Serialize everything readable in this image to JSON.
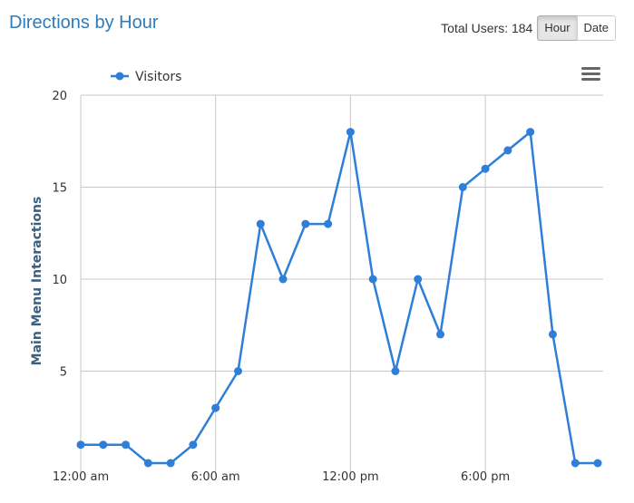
{
  "header": {
    "title": "Directions by Hour",
    "total_users_label": "Total Users: 184",
    "toggle": {
      "hour_label": "Hour",
      "date_label": "Date",
      "active": "hour"
    }
  },
  "icons": {
    "menu": "hamburger-menu-icon"
  },
  "colors": {
    "series": "#2f7ed8",
    "title": "#2f7ab8",
    "grid": "#c8c8c8"
  },
  "chart_data": {
    "type": "line",
    "title": "",
    "xlabel": "",
    "ylabel": "Main Menu Interactions",
    "ylim": [
      0,
      20
    ],
    "y_ticks": [
      5,
      10,
      15,
      20
    ],
    "x_tick_labels": [
      {
        "index": 0,
        "label": "12:00 am"
      },
      {
        "index": 6,
        "label": "6:00 am"
      },
      {
        "index": 12,
        "label": "12:00 pm"
      },
      {
        "index": 18,
        "label": "6:00 pm"
      }
    ],
    "grid": true,
    "legend_position": "top-left",
    "series": [
      {
        "name": "Visitors",
        "color": "#2f7ed8",
        "values": [
          1,
          1,
          1,
          0,
          0,
          1,
          3,
          5,
          13,
          10,
          13,
          13,
          18,
          10,
          5,
          10,
          7,
          15,
          16,
          17,
          18,
          7,
          0,
          0
        ]
      }
    ]
  }
}
